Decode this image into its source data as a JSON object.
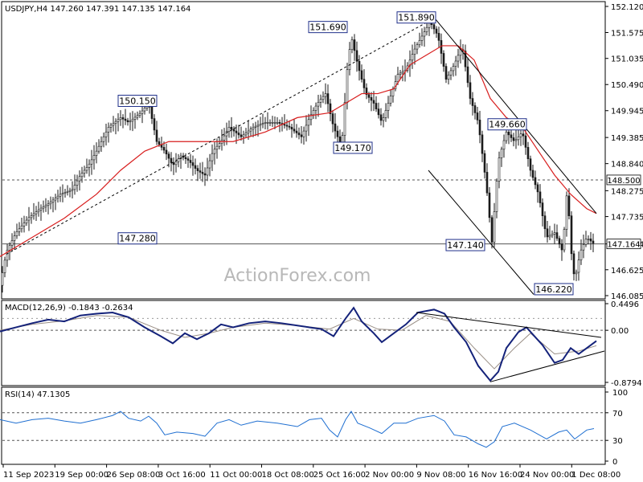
{
  "chart_data": [
    {
      "type": "candlestick",
      "header": "USDJPY,H4  147.260 147.391 147.135 147.164",
      "watermark": "ActionForex.com",
      "ylim": [
        146.085,
        152.12
      ],
      "y_ticks": [
        "152.120",
        "151.575",
        "151.035",
        "150.490",
        "149.945",
        "149.385",
        "148.840",
        "148.275",
        "147.735",
        "147.164",
        "146.625",
        "146.085"
      ],
      "x_ticks": [
        "11 Sep 2023",
        "19 Sep 00:00",
        "26 Sep 08:00",
        "3 Oct 16:00",
        "11 Oct 00:00",
        "18 Oct 08:00",
        "25 Oct 16:00",
        "2 Nov 00:00",
        "9 Nov 08:00",
        "16 Nov 16:00",
        "24 Nov 00:00",
        "1 Dec 08:00"
      ],
      "price_path": [
        [
          0,
          146.3
        ],
        [
          8,
          147.0
        ],
        [
          20,
          147.4
        ],
        [
          35,
          147.7
        ],
        [
          50,
          147.9
        ],
        [
          60,
          148.0
        ],
        [
          75,
          148.2
        ],
        [
          90,
          148.3
        ],
        [
          100,
          148.6
        ],
        [
          110,
          148.8
        ],
        [
          120,
          149.1
        ],
        [
          135,
          149.6
        ],
        [
          150,
          149.8
        ],
        [
          160,
          149.7
        ],
        [
          175,
          149.9
        ],
        [
          185,
          150.1
        ],
        [
          195,
          149.3
        ],
        [
          205,
          149.1
        ],
        [
          215,
          148.8
        ],
        [
          225,
          149.0
        ],
        [
          235,
          148.9
        ],
        [
          245,
          148.7
        ],
        [
          255,
          148.6
        ],
        [
          265,
          149.1
        ],
        [
          275,
          149.3
        ],
        [
          285,
          149.6
        ],
        [
          300,
          149.4
        ],
        [
          315,
          149.6
        ],
        [
          330,
          149.7
        ],
        [
          345,
          149.7
        ],
        [
          360,
          149.6
        ],
        [
          375,
          149.4
        ],
        [
          385,
          149.8
        ],
        [
          395,
          150.1
        ],
        [
          405,
          150.3
        ],
        [
          415,
          149.6
        ],
        [
          425,
          149.2
        ],
        [
          432,
          150.8
        ],
        [
          437,
          151.5
        ],
        [
          445,
          150.9
        ],
        [
          455,
          150.3
        ],
        [
          465,
          150.1
        ],
        [
          475,
          149.7
        ],
        [
          485,
          150.2
        ],
        [
          495,
          150.7
        ],
        [
          505,
          150.8
        ],
        [
          515,
          151.2
        ],
        [
          525,
          151.5
        ],
        [
          535,
          151.8
        ],
        [
          545,
          151.5
        ],
        [
          555,
          150.6
        ],
        [
          565,
          150.9
        ],
        [
          575,
          151.3
        ],
        [
          585,
          150.2
        ],
        [
          595,
          149.7
        ],
        [
          605,
          148.4
        ],
        [
          612,
          147.2
        ],
        [
          620,
          148.9
        ],
        [
          630,
          149.5
        ],
        [
          640,
          149.3
        ],
        [
          650,
          149.5
        ],
        [
          660,
          148.7
        ],
        [
          670,
          148.2
        ],
        [
          680,
          147.3
        ],
        [
          690,
          147.4
        ],
        [
          700,
          147.0
        ],
        [
          706,
          148.4
        ],
        [
          710,
          147.1
        ],
        [
          715,
          146.4
        ],
        [
          722,
          147.0
        ],
        [
          730,
          147.3
        ],
        [
          739,
          147.164
        ]
      ],
      "ma_path": [
        [
          0,
          146.9
        ],
        [
          40,
          147.3
        ],
        [
          80,
          147.7
        ],
        [
          120,
          148.2
        ],
        [
          150,
          148.7
        ],
        [
          180,
          149.1
        ],
        [
          210,
          149.3
        ],
        [
          250,
          149.3
        ],
        [
          290,
          149.3
        ],
        [
          330,
          149.5
        ],
        [
          370,
          149.8
        ],
        [
          410,
          149.9
        ],
        [
          430,
          150.1
        ],
        [
          450,
          150.3
        ],
        [
          470,
          150.3
        ],
        [
          490,
          150.4
        ],
        [
          510,
          150.9
        ],
        [
          530,
          151.1
        ],
        [
          550,
          151.3
        ],
        [
          570,
          151.3
        ],
        [
          590,
          151.0
        ],
        [
          610,
          150.2
        ],
        [
          630,
          149.8
        ],
        [
          650,
          149.6
        ],
        [
          670,
          149.1
        ],
        [
          690,
          148.6
        ],
        [
          710,
          148.2
        ],
        [
          730,
          147.9
        ],
        [
          742,
          147.8
        ]
      ],
      "trendlines": [
        [
          [
            8,
            146.95
          ],
          [
            542,
            151.89
          ]
        ],
        [
          [
            540,
            151.89
          ],
          [
            742,
            147.8
          ]
        ],
        [
          [
            533,
            148.7
          ],
          [
            664,
            146.11
          ]
        ]
      ],
      "levels": [
        {
          "value": 148.5,
          "label": "148.500",
          "style": "dashed"
        },
        {
          "value": 147.164,
          "label": "147.164",
          "style": "solid"
        }
      ],
      "annotations": [
        {
          "label": "150.150",
          "x": 195,
          "value": 150.15,
          "side": "left"
        },
        {
          "label": "147.280",
          "x": 195,
          "value": 147.28,
          "side": "left"
        },
        {
          "label": "151.690",
          "x": 432,
          "value": 151.69,
          "side": "left"
        },
        {
          "label": "149.170",
          "x": 463,
          "value": 149.17,
          "side": "left"
        },
        {
          "label": "151.890",
          "x": 542,
          "value": 151.89,
          "side": "left"
        },
        {
          "label": "149.660",
          "x": 655,
          "value": 149.66,
          "side": "left"
        },
        {
          "label": "147.140",
          "x": 603,
          "value": 147.14,
          "side": "left"
        },
        {
          "label": "146.220",
          "x": 713,
          "value": 146.22,
          "side": "left"
        }
      ]
    },
    {
      "type": "line",
      "header": "MACD(12,26,9) -0.1843 -0.2634",
      "ylim": [
        -0.8794,
        0.4496
      ],
      "y_ticks": [
        "0.4496",
        "0.00",
        "-0.8794"
      ],
      "macd_path": [
        [
          0,
          -0.02
        ],
        [
          20,
          0.05
        ],
        [
          40,
          0.12
        ],
        [
          60,
          0.18
        ],
        [
          80,
          0.15
        ],
        [
          100,
          0.25
        ],
        [
          120,
          0.28
        ],
        [
          140,
          0.3
        ],
        [
          160,
          0.22
        ],
        [
          180,
          0.05
        ],
        [
          200,
          -0.1
        ],
        [
          215,
          -0.22
        ],
        [
          230,
          -0.05
        ],
        [
          245,
          -0.15
        ],
        [
          260,
          -0.05
        ],
        [
          275,
          0.1
        ],
        [
          290,
          0.05
        ],
        [
          310,
          0.12
        ],
        [
          330,
          0.15
        ],
        [
          350,
          0.12
        ],
        [
          370,
          0.08
        ],
        [
          385,
          0.05
        ],
        [
          400,
          0.02
        ],
        [
          415,
          -0.1
        ],
        [
          430,
          0.2
        ],
        [
          440,
          0.38
        ],
        [
          450,
          0.15
        ],
        [
          465,
          -0.05
        ],
        [
          475,
          -0.2
        ],
        [
          490,
          -0.05
        ],
        [
          505,
          0.1
        ],
        [
          520,
          0.3
        ],
        [
          540,
          0.35
        ],
        [
          553,
          0.28
        ],
        [
          565,
          0.05
        ],
        [
          580,
          -0.2
        ],
        [
          595,
          -0.6
        ],
        [
          610,
          -0.85
        ],
        [
          620,
          -0.7
        ],
        [
          630,
          -0.3
        ],
        [
          645,
          -0.03
        ],
        [
          655,
          0.05
        ],
        [
          665,
          -0.1
        ],
        [
          675,
          -0.25
        ],
        [
          690,
          -0.55
        ],
        [
          700,
          -0.5
        ],
        [
          710,
          -0.3
        ],
        [
          720,
          -0.4
        ],
        [
          730,
          -0.3
        ],
        [
          742,
          -0.18
        ]
      ],
      "signal_path": [
        [
          0,
          0.0
        ],
        [
          40,
          0.1
        ],
        [
          80,
          0.16
        ],
        [
          120,
          0.25
        ],
        [
          160,
          0.22
        ],
        [
          200,
          0.0
        ],
        [
          230,
          -0.12
        ],
        [
          260,
          -0.05
        ],
        [
          290,
          0.05
        ],
        [
          330,
          0.12
        ],
        [
          370,
          0.08
        ],
        [
          410,
          0.02
        ],
        [
          440,
          0.2
        ],
        [
          470,
          0.02
        ],
        [
          500,
          0.0
        ],
        [
          530,
          0.25
        ],
        [
          560,
          0.15
        ],
        [
          590,
          -0.3
        ],
        [
          615,
          -0.65
        ],
        [
          640,
          -0.3
        ],
        [
          660,
          -0.05
        ],
        [
          690,
          -0.4
        ],
        [
          720,
          -0.35
        ],
        [
          742,
          -0.26
        ]
      ],
      "trendlines": [
        [
          [
            518,
            0.3
          ],
          [
            748,
            -0.12
          ]
        ],
        [
          [
            610,
            -0.87
          ],
          [
            752,
            -0.35
          ]
        ]
      ]
    },
    {
      "type": "line",
      "header": "RSI(14) 47.1305",
      "ylim": [
        0,
        100
      ],
      "y_ticks": [
        "100",
        "70",
        "30",
        "0"
      ],
      "levels": [
        70,
        30
      ],
      "rsi_path": [
        [
          0,
          60
        ],
        [
          20,
          55
        ],
        [
          40,
          60
        ],
        [
          60,
          62
        ],
        [
          80,
          58
        ],
        [
          100,
          55
        ],
        [
          120,
          60
        ],
        [
          140,
          66
        ],
        [
          150,
          72
        ],
        [
          160,
          62
        ],
        [
          175,
          58
        ],
        [
          185,
          65
        ],
        [
          195,
          55
        ],
        [
          205,
          38
        ],
        [
          220,
          42
        ],
        [
          240,
          40
        ],
        [
          255,
          36
        ],
        [
          270,
          55
        ],
        [
          285,
          60
        ],
        [
          300,
          52
        ],
        [
          320,
          58
        ],
        [
          345,
          55
        ],
        [
          370,
          50
        ],
        [
          385,
          60
        ],
        [
          400,
          62
        ],
        [
          410,
          45
        ],
        [
          420,
          35
        ],
        [
          430,
          60
        ],
        [
          437,
          72
        ],
        [
          445,
          55
        ],
        [
          460,
          48
        ],
        [
          475,
          40
        ],
        [
          490,
          55
        ],
        [
          505,
          55
        ],
        [
          520,
          62
        ],
        [
          540,
          66
        ],
        [
          553,
          58
        ],
        [
          565,
          38
        ],
        [
          580,
          35
        ],
        [
          595,
          25
        ],
        [
          605,
          20
        ],
        [
          615,
          28
        ],
        [
          625,
          50
        ],
        [
          640,
          55
        ],
        [
          660,
          45
        ],
        [
          680,
          32
        ],
        [
          695,
          42
        ],
        [
          705,
          45
        ],
        [
          715,
          32
        ],
        [
          730,
          45
        ],
        [
          739,
          47.1
        ]
      ]
    }
  ]
}
